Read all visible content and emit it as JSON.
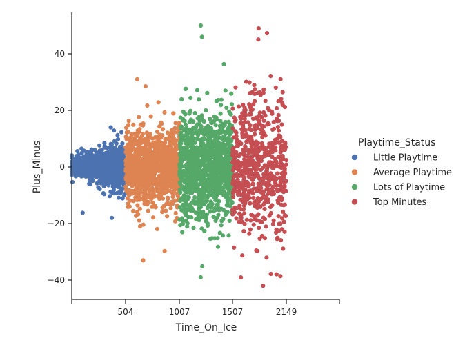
{
  "chart_data": {
    "type": "scatter",
    "title": "",
    "xlabel": "Time_On_Ice",
    "ylabel": "Plus_Minus",
    "x_ticks": [
      504,
      1007,
      1507,
      2149
    ],
    "y_ticks": [
      -40,
      -20,
      0,
      20,
      40
    ],
    "xlim": [
      0,
      2500
    ],
    "ylim": [
      -46,
      55
    ],
    "grid": false,
    "legend": {
      "title": "Playtime_Status",
      "placement": "right"
    },
    "series": [
      {
        "name": "Little Playtime",
        "color": "#4c72b0",
        "x_range": [
          0,
          504
        ],
        "y_min": -18,
        "y_max": 14
      },
      {
        "name": "Average Playtime",
        "color": "#dd8452",
        "x_range": [
          504,
          1007
        ],
        "y_min": -33,
        "y_max": 31
      },
      {
        "name": "Lots of Playtime",
        "color": "#55a868",
        "x_range": [
          1007,
          1507
        ],
        "y_min": -39,
        "y_max": 50
      },
      {
        "name": "Top Minutes",
        "color": "#c44e52",
        "x_range": [
          1507,
          2149
        ],
        "y_min": -42,
        "y_max": 49
      }
    ]
  }
}
